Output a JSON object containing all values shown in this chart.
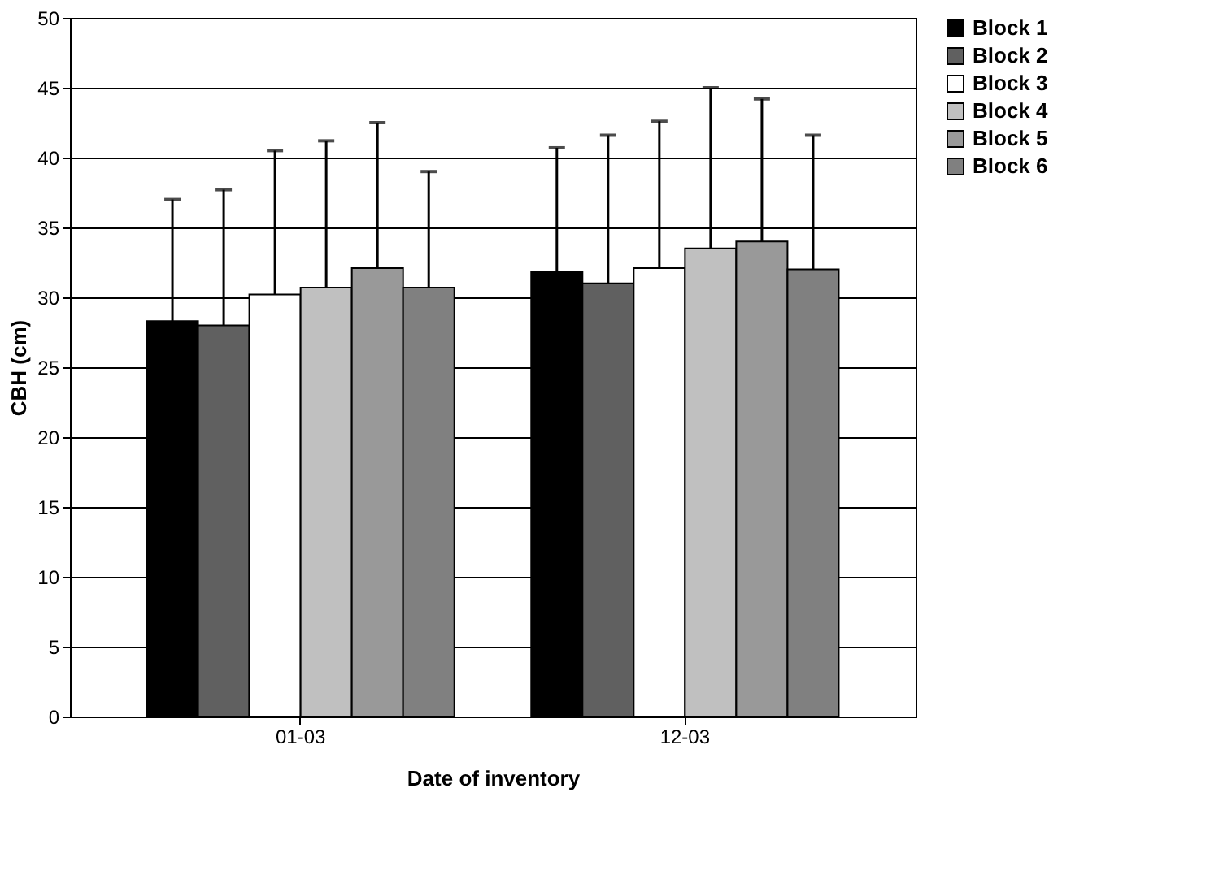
{
  "chart_data": {
    "type": "bar",
    "xlabel": "Date of inventory",
    "ylabel": "CBH (cm)",
    "categories": [
      "01-03",
      "12-03"
    ],
    "series": [
      {
        "name": "Block 1",
        "color": "#000000",
        "values": [
          28.3,
          31.8
        ],
        "errors": [
          [
            28.3,
            37.0
          ],
          [
            31.8,
            40.7
          ]
        ]
      },
      {
        "name": "Block 2",
        "color": "#606060",
        "values": [
          28.0,
          31.0
        ],
        "errors": [
          [
            28.0,
            37.7
          ],
          [
            31.0,
            41.6
          ]
        ]
      },
      {
        "name": "Block 3",
        "color": "#ffffff",
        "values": [
          30.2,
          32.1
        ],
        "errors": [
          [
            30.2,
            40.5
          ],
          [
            32.1,
            42.6
          ]
        ]
      },
      {
        "name": "Block 4",
        "color": "#c0c0c0",
        "values": [
          30.7,
          33.5
        ],
        "errors": [
          [
            30.7,
            41.2
          ],
          [
            33.5,
            45.0
          ]
        ]
      },
      {
        "name": "Block 5",
        "color": "#999999",
        "values": [
          32.1,
          34.0
        ],
        "errors": [
          [
            32.1,
            42.5
          ],
          [
            34.0,
            44.2
          ]
        ]
      },
      {
        "name": "Block 6",
        "color": "#808080",
        "values": [
          30.7,
          32.0
        ],
        "errors": [
          [
            30.7,
            39.0
          ],
          [
            32.0,
            41.6
          ]
        ]
      }
    ],
    "ylim": [
      0,
      50
    ],
    "yticks": [
      0,
      5,
      10,
      15,
      20,
      25,
      30,
      35,
      40,
      45,
      50
    ],
    "grid": "y",
    "legend": "right"
  }
}
